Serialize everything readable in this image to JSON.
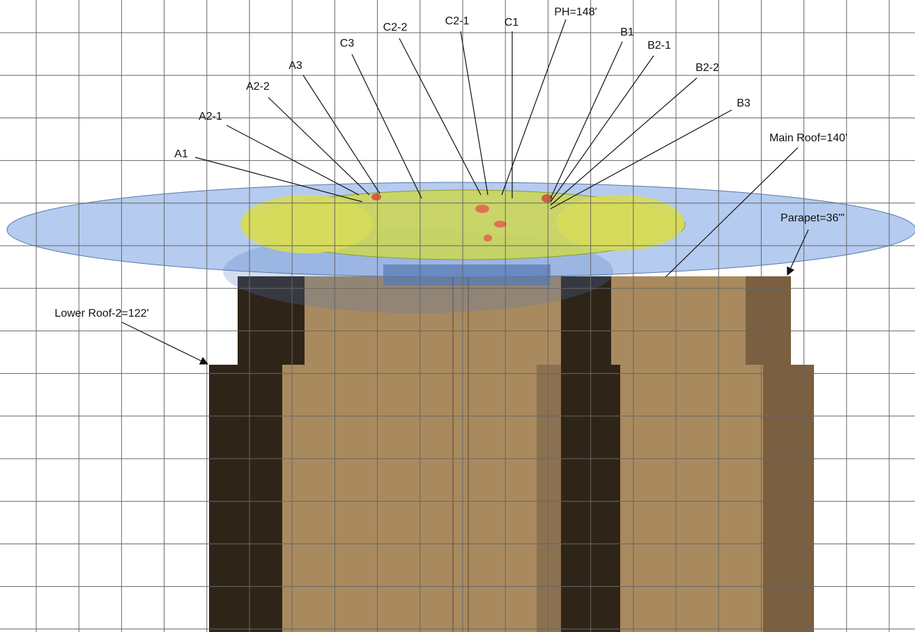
{
  "labels": [
    "A1",
    "A2-1",
    "A2-2",
    "A3",
    "C3",
    "C2-2",
    "C2-1",
    "C1",
    "PH=148'",
    "B1",
    "B2-1",
    "B2-2",
    "B3",
    "Main Roof=140'",
    "Parapet=36'\"",
    "Lower Roof-2=122'"
  ]
}
